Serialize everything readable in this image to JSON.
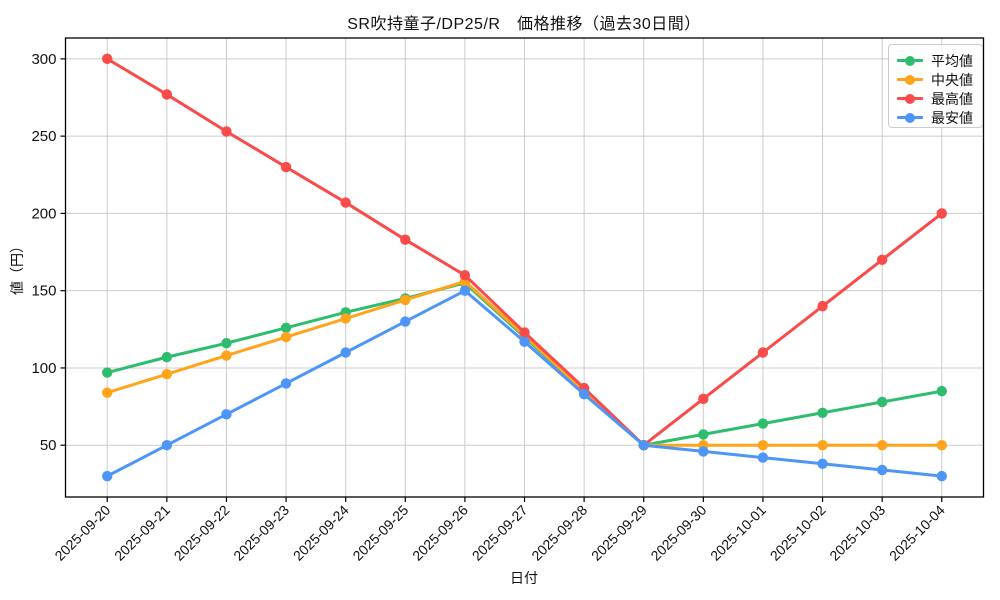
{
  "chart_data": {
    "type": "line",
    "title": "SR吹持童子/DP25/R　価格推移（過去30日間）",
    "xlabel": "日付",
    "ylabel": "値（円）",
    "x_labels": [
      "2025-09-20",
      "2025-09-21",
      "2025-09-22",
      "2025-09-23",
      "2025-09-24",
      "2025-09-25",
      "2025-09-26",
      "2025-09-27",
      "2025-09-28",
      "2025-09-29",
      "2025-09-30",
      "2025-10-01",
      "2025-10-02",
      "2025-10-03",
      "2025-10-04"
    ],
    "y_ticks": [
      50,
      100,
      150,
      200,
      250,
      300
    ],
    "ylim": [
      16.5,
      313.5
    ],
    "grid": true,
    "legend_position": "upper-right",
    "grid_color": "#cccccc",
    "axis_color": "#000000",
    "series": [
      {
        "name": "平均値",
        "color": "#2ebd6e",
        "values": [
          97,
          107,
          116,
          126,
          136,
          145,
          155,
          120,
          85,
          50,
          57,
          64,
          71,
          78,
          85
        ]
      },
      {
        "name": "中央値",
        "color": "#ffa41b",
        "values": [
          84,
          96,
          108,
          120,
          132,
          144,
          156,
          121,
          85,
          50,
          50,
          50,
          50,
          50,
          50
        ]
      },
      {
        "name": "最高値",
        "color": "#fa4b4b",
        "values": [
          300,
          277,
          253,
          230,
          207,
          183,
          160,
          123,
          87,
          50,
          80,
          110,
          140,
          170,
          200
        ]
      },
      {
        "name": "最安値",
        "color": "#4d96f8",
        "values": [
          30,
          50,
          70,
          90,
          110,
          130,
          150,
          117,
          83,
          50,
          46,
          42,
          38,
          34,
          30
        ]
      }
    ]
  }
}
